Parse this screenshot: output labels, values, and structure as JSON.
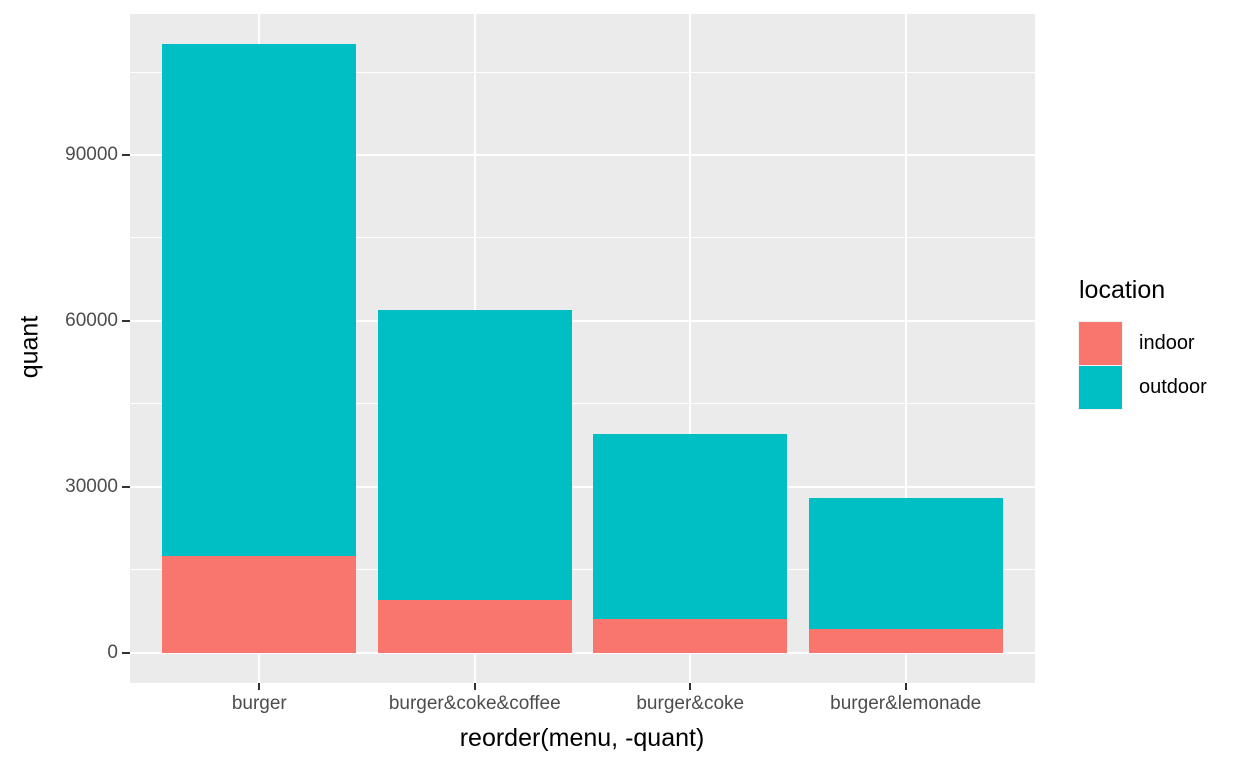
{
  "chart_data": {
    "type": "bar",
    "stacked": true,
    "title": "",
    "xlabel": "reorder(menu, -quant)",
    "ylabel": "quant",
    "categories": [
      "burger",
      "burger&coke&coffee",
      "burger&coke",
      "burger&lemonade"
    ],
    "series": [
      {
        "name": "indoor",
        "color": "#F8766D",
        "values": [
          17500,
          9500,
          6000,
          4200
        ]
      },
      {
        "name": "outdoor",
        "color": "#00BFC4",
        "values": [
          92500,
          52500,
          33500,
          23800
        ]
      }
    ],
    "stack_totals": [
      110000,
      62000,
      39500,
      28000
    ],
    "ylim": [
      -5500,
      115500
    ],
    "y_major_ticks": [
      0,
      30000,
      60000,
      90000
    ],
    "y_tick_labels": [
      "0",
      "30000",
      "60000",
      "90000"
    ],
    "y_minor_ticks": [
      15000,
      45000,
      75000,
      105000
    ],
    "grid": "on",
    "legend": {
      "title": "location",
      "position": "right",
      "entries": [
        {
          "label": "indoor",
          "color": "#F8766D"
        },
        {
          "label": "outdoor",
          "color": "#00BFC4"
        }
      ]
    },
    "style": {
      "panel_bg": "#EBEBEB",
      "grid_color": "#FFFFFF",
      "tick_label_color": "#4D4D4D",
      "axis_title_color": "#000000",
      "tick_mark_color": "#333333",
      "legend_text_color": "#000000"
    }
  }
}
